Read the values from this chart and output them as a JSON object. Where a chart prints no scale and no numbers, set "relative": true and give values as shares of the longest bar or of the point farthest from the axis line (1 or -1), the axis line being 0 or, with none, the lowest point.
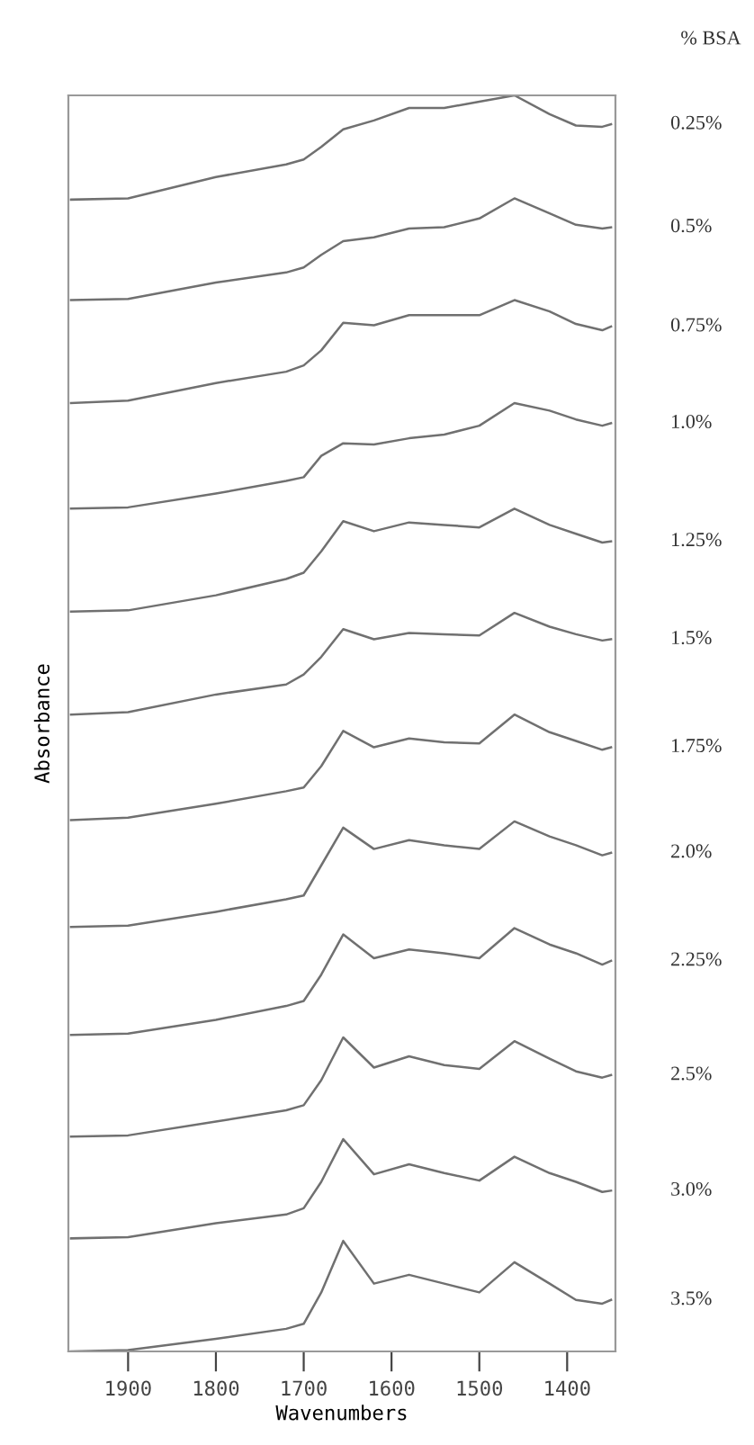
{
  "chart_data": {
    "type": "line",
    "relative": true,
    "xlabel": "Wavenumbers",
    "ylabel": "Absorbance",
    "legend_title": "% BSA",
    "x": [
      1965,
      1900,
      1800,
      1720,
      1700,
      1680,
      1655,
      1620,
      1580,
      1540,
      1500,
      1460,
      1420,
      1390,
      1360,
      1350
    ],
    "xlim": [
      1968,
      1345
    ],
    "xticks": [
      1900,
      1800,
      1700,
      1600,
      1500,
      1400
    ],
    "grid": false,
    "legend": false,
    "marker": "none",
    "line_style": "solid",
    "series": [
      {
        "name": "0.25%",
        "color": "#707070",
        "values": [
          0.917,
          0.918,
          0.935,
          0.945,
          0.949,
          0.959,
          0.973,
          0.98,
          0.99,
          0.99,
          0.995,
          1.0,
          0.985,
          0.976,
          0.975,
          0.977
        ]
      },
      {
        "name": "0.5%",
        "color": "#707070",
        "values": [
          0.837,
          0.838,
          0.851,
          0.859,
          0.863,
          0.873,
          0.884,
          0.887,
          0.894,
          0.895,
          0.902,
          0.918,
          0.906,
          0.897,
          0.894,
          0.895
        ]
      },
      {
        "name": "0.75%",
        "color": "#707070",
        "values": [
          0.755,
          0.757,
          0.771,
          0.78,
          0.785,
          0.797,
          0.819,
          0.817,
          0.825,
          0.825,
          0.825,
          0.837,
          0.828,
          0.818,
          0.813,
          0.816
        ]
      },
      {
        "name": "1.0%",
        "color": "#707070",
        "values": [
          0.671,
          0.672,
          0.683,
          0.693,
          0.696,
          0.713,
          0.723,
          0.722,
          0.727,
          0.73,
          0.737,
          0.755,
          0.749,
          0.742,
          0.737,
          0.739
        ]
      },
      {
        "name": "1.25%",
        "color": "#707070",
        "values": [
          0.589,
          0.59,
          0.602,
          0.615,
          0.62,
          0.637,
          0.661,
          0.653,
          0.66,
          0.658,
          0.656,
          0.671,
          0.658,
          0.651,
          0.644,
          0.645
        ]
      },
      {
        "name": "1.5%",
        "color": "#707070",
        "values": [
          0.507,
          0.509,
          0.523,
          0.531,
          0.539,
          0.553,
          0.575,
          0.567,
          0.572,
          0.571,
          0.57,
          0.588,
          0.577,
          0.571,
          0.566,
          0.567
        ]
      },
      {
        "name": "1.75%",
        "color": "#707070",
        "values": [
          0.423,
          0.425,
          0.436,
          0.446,
          0.449,
          0.466,
          0.494,
          0.481,
          0.488,
          0.485,
          0.484,
          0.507,
          0.493,
          0.486,
          0.479,
          0.481
        ]
      },
      {
        "name": "2.0%",
        "color": "#707070",
        "values": [
          0.338,
          0.339,
          0.35,
          0.36,
          0.363,
          0.387,
          0.417,
          0.4,
          0.407,
          0.403,
          0.4,
          0.422,
          0.41,
          0.403,
          0.395,
          0.397
        ]
      },
      {
        "name": "2.25%",
        "color": "#707070",
        "values": [
          0.252,
          0.253,
          0.264,
          0.275,
          0.279,
          0.3,
          0.332,
          0.313,
          0.32,
          0.317,
          0.313,
          0.337,
          0.324,
          0.317,
          0.308,
          0.311
        ]
      },
      {
        "name": "2.5%",
        "color": "#707070",
        "values": [
          0.171,
          0.172,
          0.183,
          0.192,
          0.196,
          0.216,
          0.25,
          0.226,
          0.235,
          0.228,
          0.225,
          0.247,
          0.233,
          0.223,
          0.218,
          0.22
        ]
      },
      {
        "name": "3.0%",
        "color": "#707070",
        "values": [
          0.09,
          0.091,
          0.102,
          0.109,
          0.114,
          0.135,
          0.169,
          0.141,
          0.149,
          0.142,
          0.136,
          0.155,
          0.142,
          0.135,
          0.127,
          0.128
        ]
      },
      {
        "name": "3.5%",
        "color": "#707070",
        "values": [
          0.0,
          0.001,
          0.01,
          0.018,
          0.022,
          0.047,
          0.088,
          0.054,
          0.061,
          0.054,
          0.047,
          0.071,
          0.054,
          0.041,
          0.038,
          0.041
        ]
      }
    ]
  }
}
